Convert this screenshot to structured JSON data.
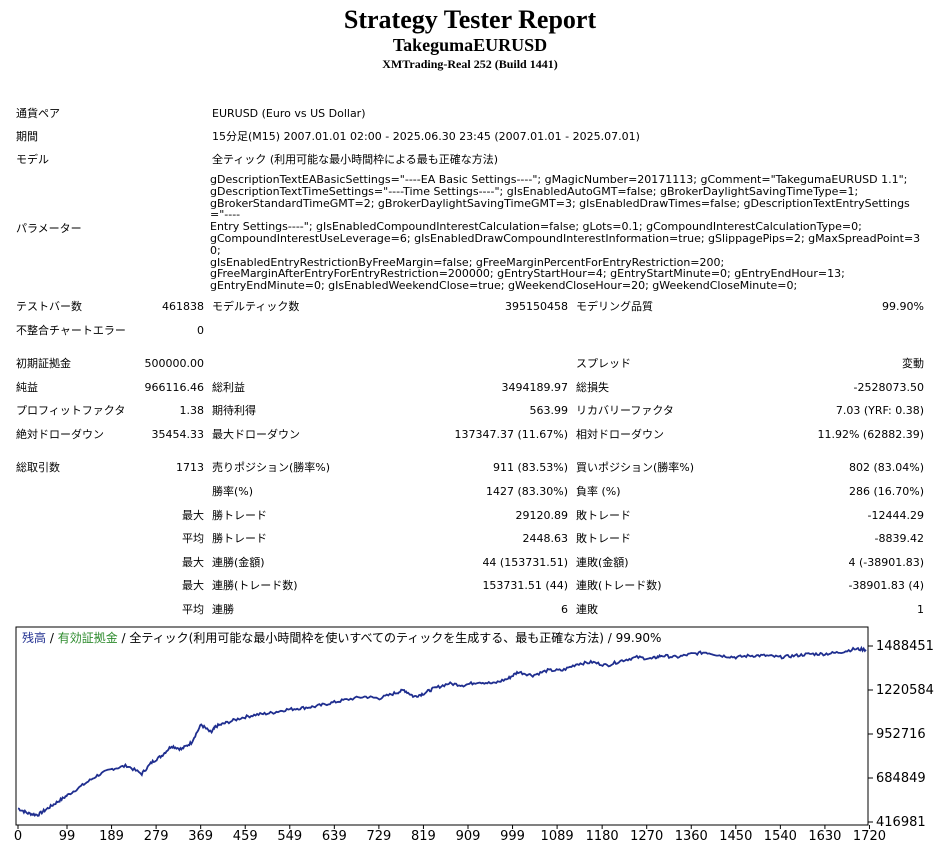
{
  "header": {
    "title": "Strategy Tester Report",
    "ea_name": "TakegumaEURUSD",
    "broker": "XMTrading-Real 252 (Build 1441)"
  },
  "info": {
    "symbol_label": "通貨ペア",
    "symbol_value": "EURUSD (Euro vs US Dollar)",
    "period_label": "期間",
    "period_value": "15分足(M15) 2007.01.01 02:00 - 2025.06.30 23:45 (2007.01.01 - 2025.07.01)",
    "model_label": "モデル",
    "model_value": "全ティック (利用可能な最小時間枠による最も正確な方法)",
    "params_label": "パラメーター",
    "params_lines": [
      "gDescriptionTextEABasicSettings=\"----EA Basic Settings----\"; gMagicNumber=20171113; gComment=\"TakegumaEURUSD 1.1\";",
      "gDescriptionTextTimeSettings=\"----Time Settings----\"; gIsEnabledAutoGMT=false; gBrokerDaylightSavingTimeType=1;",
      "gBrokerStandardTimeGMT=2; gBrokerDaylightSavingTimeGMT=3; gIsEnabledDrawTimes=false; gDescriptionTextEntrySettings=\"----",
      "Entry Settings----\"; gIsEnabledCompoundInterestCalculation=false; gLots=0.1; gCompoundInterestCalculationType=0;",
      "gCompoundInterestUseLeverage=6; gIsEnabledDrawCompoundInterestInformation=true; gSlippagePips=2; gMaxSpreadPoint=30;",
      "gIsEnabledEntryRestrictionByFreeMargin=false; gFreeMarginPercentForEntryRestriction=200;",
      "gFreeMarginAfterEntryForEntryRestriction=200000; gEntryStartHour=4; gEntryStartMinute=0; gEntryEndHour=13;",
      "gEntryEndMinute=0; gIsEnabledWeekendClose=true; gWeekendCloseHour=20; gWeekendCloseMinute=0;"
    ]
  },
  "stats": {
    "bars_label": "テストバー数",
    "bars_value": "461838",
    "ticks_label": "モデルティック数",
    "ticks_value": "395150458",
    "quality_label": "モデリング品質",
    "quality_value": "99.90%",
    "mismatch_label": "不整合チャートエラー",
    "mismatch_value": "0",
    "deposit_label": "初期証拠金",
    "deposit_value": "500000.00",
    "spread_label": "スプレッド",
    "spread_value": "変動",
    "net_label": "純益",
    "net_value": "966116.46",
    "gross_profit_label": "総利益",
    "gross_profit_value": "3494189.97",
    "gross_loss_label": "総損失",
    "gross_loss_value": "-2528073.50",
    "pf_label": "プロフィットファクタ",
    "pf_value": "1.38",
    "payoff_label": "期待利得",
    "payoff_value": "563.99",
    "rf_label": "リカバリーファクタ",
    "rf_value": "7.03 (YRF: 0.38)",
    "abs_dd_label": "絶対ドローダウン",
    "abs_dd_value": "35454.33",
    "max_dd_label": "最大ドローダウン",
    "max_dd_value": "137347.37 (11.67%)",
    "rel_dd_label": "相対ドローダウン",
    "rel_dd_value": "11.92% (62882.39)",
    "trades_label": "総取引数",
    "trades_value": "1713",
    "short_label": "売りポジション(勝率%)",
    "short_value": "911 (83.53%)",
    "long_label": "買いポジション(勝率%)",
    "long_value": "802 (83.04%)",
    "winrate_label": "勝率(%)",
    "winrate_value": "1427 (83.30%)",
    "lossrate_label": "負率 (%)",
    "lossrate_value": "286 (16.70%)",
    "max_label": "最大",
    "avg_label": "平均",
    "win_trade_label": "勝トレード",
    "loss_trade_label": "敗トレード",
    "max_win_value": "29120.89",
    "max_loss_value": "-12444.29",
    "avg_win_value": "2448.63",
    "avg_loss_value": "-8839.42",
    "consec_win_amount_label": "連勝(金額)",
    "consec_win_amount_value": "44 (153731.51)",
    "consec_loss_amount_label": "連敗(金額)",
    "consec_loss_amount_value": "4 (-38901.83)",
    "consec_win_trades_label": "連勝(トレード数)",
    "consec_win_trades_value": "153731.51 (44)",
    "consec_loss_trades_label": "連敗(トレード数)",
    "consec_loss_trades_value": "-38901.83 (4)",
    "avg_consec_win_label": "連勝",
    "avg_consec_win_value": "6",
    "avg_consec_loss_label": "連敗",
    "avg_consec_loss_value": "1"
  },
  "chart_data": {
    "type": "line",
    "legend_balance": "残高",
    "legend_sep1": " / ",
    "legend_equity": "有効証拠金",
    "legend_sep2": " / ",
    "legend_model": "全ティック(利用可能な最小時間枠を使いすべてのティックを生成する、最も正確な方法)",
    "legend_sep3": " / ",
    "legend_quality": "99.90%",
    "x_ticks": [
      "0",
      "99",
      "189",
      "279",
      "369",
      "459",
      "549",
      "639",
      "729",
      "819",
      "909",
      "999",
      "1089",
      "1180",
      "1270",
      "1360",
      "1450",
      "1540",
      "1630",
      "1720"
    ],
    "x_tick_values": [
      0,
      99,
      189,
      279,
      369,
      459,
      549,
      639,
      729,
      819,
      909,
      999,
      1089,
      1180,
      1270,
      1360,
      1450,
      1540,
      1630,
      1720
    ],
    "y_ticks": [
      "1488451",
      "1220584",
      "952716",
      "684849",
      "416981"
    ],
    "y_tick_values": [
      1488451,
      1220584,
      952716,
      684849,
      416981
    ],
    "xlim": [
      0,
      1713
    ],
    "ylim": [
      416981,
      1488451
    ],
    "series": [
      {
        "name": "残高",
        "color": "#1f2e8f",
        "x": [
          0,
          20,
          40,
          60,
          80,
          100,
          130,
          160,
          190,
          220,
          250,
          270,
          290,
          310,
          330,
          350,
          370,
          390,
          400,
          420,
          450,
          480,
          510,
          540,
          570,
          600,
          630,
          660,
          700,
          730,
          760,
          780,
          800,
          820,
          840,
          870,
          900,
          930,
          960,
          990,
          1010,
          1040,
          1070,
          1100,
          1130,
          1160,
          1190,
          1220,
          1250,
          1280,
          1300,
          1330,
          1360,
          1390,
          1420,
          1450,
          1480,
          1510,
          1540,
          1570,
          1600,
          1630,
          1660,
          1690,
          1713
        ],
        "y": [
          500000,
          470000,
          460000,
          500000,
          540000,
          580000,
          640000,
          700000,
          740000,
          760000,
          710000,
          780000,
          820000,
          880000,
          860000,
          900000,
          1010000,
          960000,
          1000000,
          1020000,
          1050000,
          1070000,
          1080000,
          1100000,
          1110000,
          1120000,
          1140000,
          1160000,
          1180000,
          1170000,
          1200000,
          1220000,
          1180000,
          1200000,
          1230000,
          1260000,
          1250000,
          1270000,
          1260000,
          1290000,
          1330000,
          1310000,
          1340000,
          1340000,
          1380000,
          1390000,
          1370000,
          1400000,
          1420000,
          1410000,
          1430000,
          1420000,
          1440000,
          1450000,
          1430000,
          1420000,
          1430000,
          1430000,
          1420000,
          1430000,
          1440000,
          1440000,
          1450000,
          1470000,
          1466000
        ]
      }
    ]
  }
}
